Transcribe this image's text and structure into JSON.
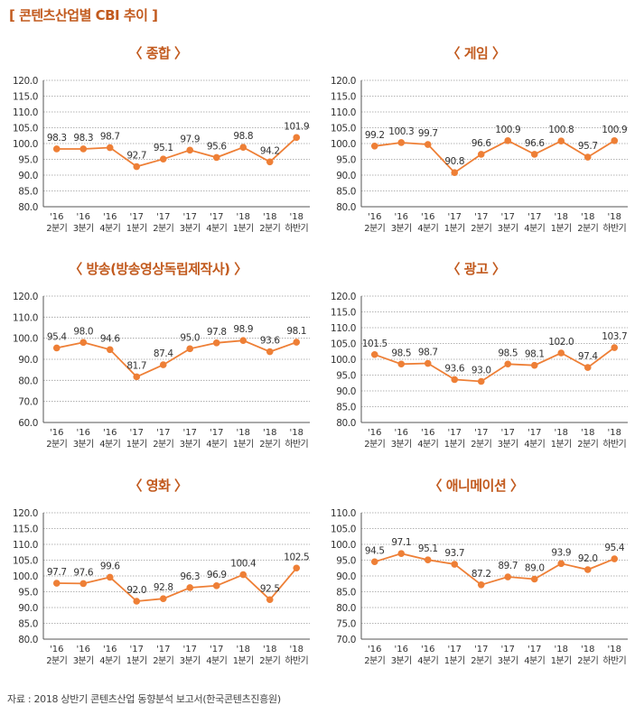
{
  "header": {
    "title": "[ 콘텐츠산업별 CBI 추이 ]"
  },
  "footer": {
    "source": "자료 : 2018 상반기 콘텐츠산업 동향분석 보고서(한국콘텐츠진흥원)"
  },
  "colors": {
    "line": "#ee7f36",
    "grid": "#9a9a9a",
    "axis": "#555555",
    "title": "#c25a1e"
  },
  "chart_data": [
    {
      "type": "line",
      "title": "〈 종합 〉",
      "categories": [
        [
          "'16",
          "2분기"
        ],
        [
          "'16",
          "3분기"
        ],
        [
          "'16",
          "4분기"
        ],
        [
          "'17",
          "1분기"
        ],
        [
          "'17",
          "2분기"
        ],
        [
          "'17",
          "3분기"
        ],
        [
          "'17",
          "4분기"
        ],
        [
          "'18",
          "1분기"
        ],
        [
          "'18",
          "2분기"
        ],
        [
          "'18",
          "하반기"
        ]
      ],
      "values": [
        98.3,
        98.3,
        98.7,
        92.7,
        95.1,
        97.9,
        95.6,
        98.8,
        94.2,
        101.9
      ],
      "labels": [
        "98.3",
        "98.3",
        "98.7",
        "92.7",
        "95.1",
        "97.9",
        "95.6",
        "98.8",
        "94.2",
        "101.9"
      ],
      "yticks": [
        "120.0",
        "115.0",
        "110.0",
        "105.0",
        "100.0",
        "95.0",
        "90.0",
        "85.0",
        "80.0"
      ],
      "ylim": [
        80,
        120
      ]
    },
    {
      "type": "line",
      "title": "〈 게임 〉",
      "categories": [
        [
          "'16",
          "2분기"
        ],
        [
          "'16",
          "3분기"
        ],
        [
          "'16",
          "4분기"
        ],
        [
          "'17",
          "1분기"
        ],
        [
          "'17",
          "2분기"
        ],
        [
          "'17",
          "3분기"
        ],
        [
          "'17",
          "4분기"
        ],
        [
          "'18",
          "1분기"
        ],
        [
          "'18",
          "2분기"
        ],
        [
          "'18",
          "하반기"
        ]
      ],
      "values": [
        99.2,
        100.3,
        99.7,
        90.8,
        96.6,
        100.9,
        96.6,
        100.8,
        95.7,
        100.9
      ],
      "labels": [
        "99.2",
        "100.3",
        "99.7",
        "90.8",
        "96.6",
        "100.9",
        "96.6",
        "100.8",
        "95.7",
        "100.9"
      ],
      "yticks": [
        "120.0",
        "115.0",
        "110.0",
        "105.0",
        "100.0",
        "95.0",
        "90.0",
        "85.0",
        "80.0"
      ],
      "ylim": [
        80,
        120
      ]
    },
    {
      "type": "line",
      "title": "〈 방송(방송영상독립제작사) 〉",
      "categories": [
        [
          "'16",
          "2분기"
        ],
        [
          "'16",
          "3분기"
        ],
        [
          "'16",
          "4분기"
        ],
        [
          "'17",
          "1분기"
        ],
        [
          "'17",
          "2분기"
        ],
        [
          "'17",
          "3분기"
        ],
        [
          "'17",
          "4분기"
        ],
        [
          "'18",
          "1분기"
        ],
        [
          "'18",
          "2분기"
        ],
        [
          "'18",
          "하반기"
        ]
      ],
      "values": [
        95.4,
        98.0,
        94.6,
        81.7,
        87.4,
        95.0,
        97.8,
        98.9,
        93.6,
        98.1
      ],
      "labels": [
        "95.4",
        "98.0",
        "94.6",
        "81.7",
        "87.4",
        "95.0",
        "97.8",
        "98.9",
        "93.6",
        "98.1"
      ],
      "yticks": [
        "120.0",
        "110.0",
        "100.0",
        "90.0",
        "80.0",
        "70.0",
        "60.0"
      ],
      "ylim": [
        60,
        120
      ]
    },
    {
      "type": "line",
      "title": "〈 광고 〉",
      "categories": [
        [
          "'16",
          "2분기"
        ],
        [
          "'16",
          "3분기"
        ],
        [
          "'16",
          "4분기"
        ],
        [
          "'17",
          "1분기"
        ],
        [
          "'17",
          "2분기"
        ],
        [
          "'17",
          "3분기"
        ],
        [
          "'17",
          "4분기"
        ],
        [
          "'18",
          "1분기"
        ],
        [
          "'18",
          "2분기"
        ],
        [
          "'18",
          "하반기"
        ]
      ],
      "values": [
        101.5,
        98.5,
        98.7,
        93.6,
        93.0,
        98.5,
        98.1,
        102.0,
        97.4,
        103.7
      ],
      "labels": [
        "101.5",
        "98.5",
        "98.7",
        "93.6",
        "93.0",
        "98.5",
        "98.1",
        "102.0",
        "97.4",
        "103.7"
      ],
      "yticks": [
        "120.0",
        "115.0",
        "110.0",
        "105.0",
        "100.0",
        "95.0",
        "90.0",
        "85.0",
        "80.0"
      ],
      "ylim": [
        80,
        120
      ]
    },
    {
      "type": "line",
      "title": "〈 영화 〉",
      "categories": [
        [
          "'16",
          "2분기"
        ],
        [
          "'16",
          "3분기"
        ],
        [
          "'16",
          "4분기"
        ],
        [
          "'17",
          "1분기"
        ],
        [
          "'17",
          "2분기"
        ],
        [
          "'17",
          "3분기"
        ],
        [
          "'17",
          "4분기"
        ],
        [
          "'18",
          "1분기"
        ],
        [
          "'18",
          "2분기"
        ],
        [
          "'18",
          "하반기"
        ]
      ],
      "values": [
        97.7,
        97.6,
        99.6,
        92.0,
        92.8,
        96.3,
        96.9,
        100.4,
        92.5,
        102.5
      ],
      "labels": [
        "97.7",
        "97.6",
        "99.6",
        "92.0",
        "92.8",
        "96.3",
        "96.9",
        "100.4",
        "92.5",
        "102.5"
      ],
      "yticks": [
        "120.0",
        "115.0",
        "110.0",
        "105.0",
        "100.0",
        "95.0",
        "90.0",
        "85.0",
        "80.0"
      ],
      "ylim": [
        80,
        120
      ]
    },
    {
      "type": "line",
      "title": "〈 애니메이션 〉",
      "categories": [
        [
          "'16",
          "2분기"
        ],
        [
          "'16",
          "3분기"
        ],
        [
          "'16",
          "4분기"
        ],
        [
          "'17",
          "1분기"
        ],
        [
          "'17",
          "2분기"
        ],
        [
          "'17",
          "3분기"
        ],
        [
          "'17",
          "4분기"
        ],
        [
          "'18",
          "1분기"
        ],
        [
          "'18",
          "2분기"
        ],
        [
          "'18",
          "하반기"
        ]
      ],
      "values": [
        94.5,
        97.1,
        95.1,
        93.7,
        87.2,
        89.7,
        89.0,
        93.9,
        92.0,
        95.4
      ],
      "labels": [
        "94.5",
        "97.1",
        "95.1",
        "93.7",
        "87.2",
        "89.7",
        "89.0",
        "93.9",
        "92.0",
        "95.4"
      ],
      "yticks": [
        "110.0",
        "105.0",
        "100.0",
        "95.0",
        "90.0",
        "85.0",
        "80.0",
        "75.0",
        "70.0"
      ],
      "ylim": [
        70,
        110
      ]
    }
  ]
}
